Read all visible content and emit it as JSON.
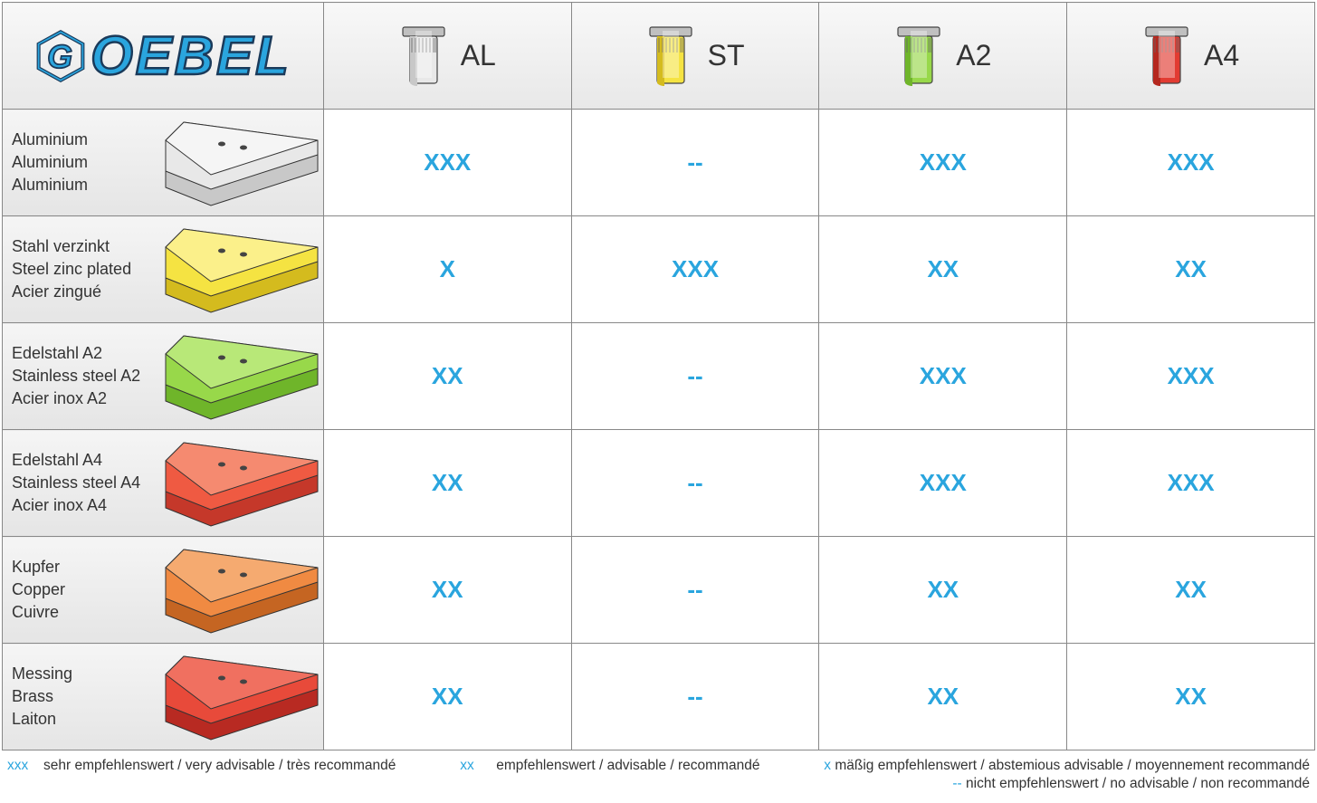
{
  "logo_text": "OEBEL",
  "accent_color": "#2aa5de",
  "logo_outline": "#1a3a5a",
  "border_color": "#888888",
  "header_bg_top": "#f8f8f8",
  "header_bg_bottom": "#e8e8e8",
  "columns": [
    {
      "label": "AL",
      "body_color": "#e8e8e8",
      "body_shade": "#c8c8c8",
      "head_top": "#c0c0c0"
    },
    {
      "label": "ST",
      "body_color": "#f5e342",
      "body_shade": "#d4bb1e",
      "head_top": "#c0c0c0"
    },
    {
      "label": "A2",
      "body_color": "#98d84a",
      "body_shade": "#6fb52a",
      "head_top": "#c0c0c0"
    },
    {
      "label": "A4",
      "body_color": "#e23b32",
      "body_shade": "#b5281f",
      "head_top": "#c0c0c0"
    }
  ],
  "rows": [
    {
      "labels": [
        "Aluminium",
        "Aluminium",
        "Aluminium"
      ],
      "plate_color": "#e8e8e8",
      "plate_shade": "#c8c8c8",
      "plate_top": "#f5f5f5",
      "values": [
        "XXX",
        "--",
        "XXX",
        "XXX"
      ]
    },
    {
      "labels": [
        "Stahl verzinkt",
        "Steel zinc plated",
        "Acier zingué"
      ],
      "plate_color": "#f5e342",
      "plate_shade": "#d4bb1e",
      "plate_top": "#fbf08a",
      "values": [
        "X",
        "XXX",
        "XX",
        "XX"
      ]
    },
    {
      "labels": [
        "Edelstahl A2",
        "Stainless steel A2",
        "Acier inox A2"
      ],
      "plate_color": "#98d84a",
      "plate_shade": "#6fb52a",
      "plate_top": "#b8e878",
      "values": [
        "XX",
        "--",
        "XXX",
        "XXX"
      ]
    },
    {
      "labels": [
        "Edelstahl A4",
        "Stainless steel A4",
        "Acier inox A4"
      ],
      "plate_color": "#ef5a42",
      "plate_shade": "#c5382a",
      "plate_top": "#f58a70",
      "values": [
        "XX",
        "--",
        "XXX",
        "XXX"
      ]
    },
    {
      "labels": [
        "Kupfer",
        "Copper",
        "Cuivre"
      ],
      "plate_color": "#f08a42",
      "plate_shade": "#c56522",
      "plate_top": "#f5aa70",
      "values": [
        "XX",
        "--",
        "XX",
        "XX"
      ]
    },
    {
      "labels": [
        "Messing",
        "Brass",
        "Laiton"
      ],
      "plate_color": "#e84a3a",
      "plate_shade": "#b82a22",
      "plate_top": "#f07060",
      "values": [
        "XX",
        "--",
        "XX",
        "XX"
      ]
    }
  ],
  "legend": {
    "xxx": {
      "key": "xxx",
      "text": "sehr empfehlenswert / very advisable / très recommandé"
    },
    "xx": {
      "key": "xx",
      "text": "empfehlenswert / advisable /  recommandé"
    },
    "x": {
      "key": "x",
      "text": "mäßig empfehlenswert / abstemious advisable / moyennement recommandé"
    },
    "dash": {
      "key": "--",
      "text": "nicht empfehlenswert / no advisable / non recommandé"
    }
  }
}
